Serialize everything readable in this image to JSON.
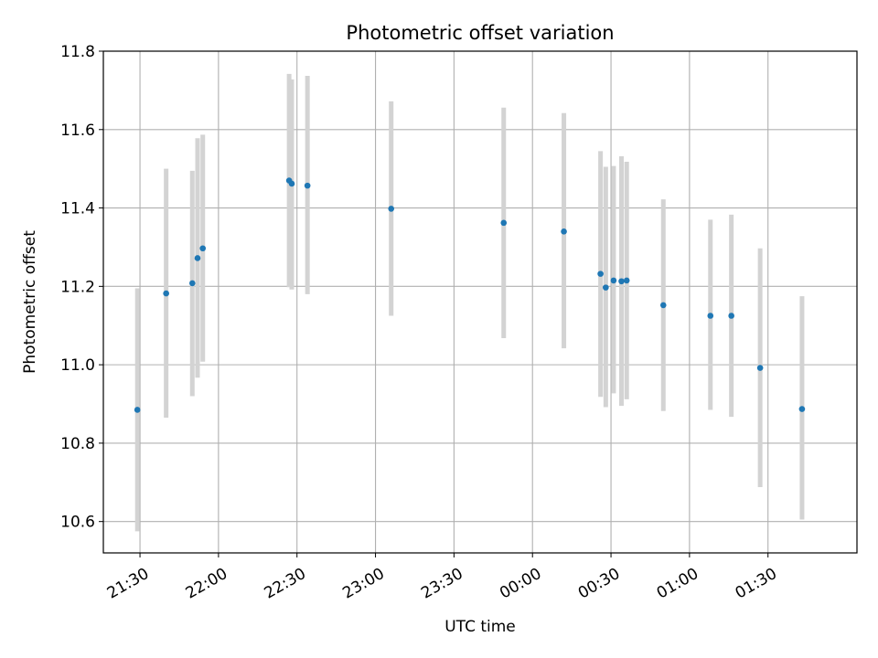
{
  "chart_data": {
    "type": "scatter",
    "title": "Photometric offset variation",
    "xlabel": "UTC time",
    "ylabel": "Photometric offset",
    "grid": true,
    "legend": "none",
    "x_unit": "UTC time (day 1 = evening, day 2 = after midnight)",
    "xlim": [
      "21:16",
      "02:04 +1"
    ],
    "ylim": [
      10.52,
      11.8
    ],
    "x_ticks": [
      "21:30",
      "22:00",
      "22:30",
      "23:00",
      "23:30",
      "00:00",
      "00:30",
      "01:00",
      "01:30"
    ],
    "y_ticks": [
      "10.6",
      "10.8",
      "11.0",
      "11.2",
      "11.4",
      "11.6",
      "11.8"
    ],
    "colors": {
      "point": "#1f77b4",
      "errorbar": "#d3d3d3",
      "grid": "#b0b0b0"
    },
    "points": [
      {
        "time": "21:29",
        "y": 10.885,
        "err_low": 10.575,
        "err_high": 11.195
      },
      {
        "time": "21:40",
        "y": 11.182,
        "err_low": 10.865,
        "err_high": 11.5
      },
      {
        "time": "21:50",
        "y": 11.208,
        "err_low": 10.92,
        "err_high": 11.495
      },
      {
        "time": "21:52",
        "y": 11.272,
        "err_low": 10.967,
        "err_high": 11.578
      },
      {
        "time": "21:54",
        "y": 11.297,
        "err_low": 11.008,
        "err_high": 11.587
      },
      {
        "time": "22:27",
        "y": 11.47,
        "err_low": 11.198,
        "err_high": 11.742
      },
      {
        "time": "22:28",
        "y": 11.462,
        "err_low": 11.192,
        "err_high": 11.728
      },
      {
        "time": "22:34",
        "y": 11.457,
        "err_low": 11.18,
        "err_high": 11.737
      },
      {
        "time": "23:06",
        "y": 11.398,
        "err_low": 11.125,
        "err_high": 11.672
      },
      {
        "time": "23:49",
        "y": 11.362,
        "err_low": 11.068,
        "err_high": 11.656
      },
      {
        "time": "00:12",
        "y": 11.34,
        "err_low": 11.042,
        "err_high": 11.642
      },
      {
        "time": "00:26",
        "y": 11.232,
        "err_low": 10.918,
        "err_high": 11.545
      },
      {
        "time": "00:28",
        "y": 11.197,
        "err_low": 10.892,
        "err_high": 11.505
      },
      {
        "time": "00:31",
        "y": 11.215,
        "err_low": 10.927,
        "err_high": 11.507
      },
      {
        "time": "00:34",
        "y": 11.213,
        "err_low": 10.895,
        "err_high": 11.532
      },
      {
        "time": "00:36",
        "y": 11.215,
        "err_low": 10.912,
        "err_high": 11.518
      },
      {
        "time": "00:50",
        "y": 11.152,
        "err_low": 10.882,
        "err_high": 11.422
      },
      {
        "time": "01:08",
        "y": 11.125,
        "err_low": 10.885,
        "err_high": 11.37
      },
      {
        "time": "01:16",
        "y": 11.125,
        "err_low": 10.867,
        "err_high": 11.383
      },
      {
        "time": "01:27",
        "y": 10.992,
        "err_low": 10.688,
        "err_high": 11.297
      },
      {
        "time": "01:43",
        "y": 10.887,
        "err_low": 10.605,
        "err_high": 11.175
      }
    ]
  }
}
